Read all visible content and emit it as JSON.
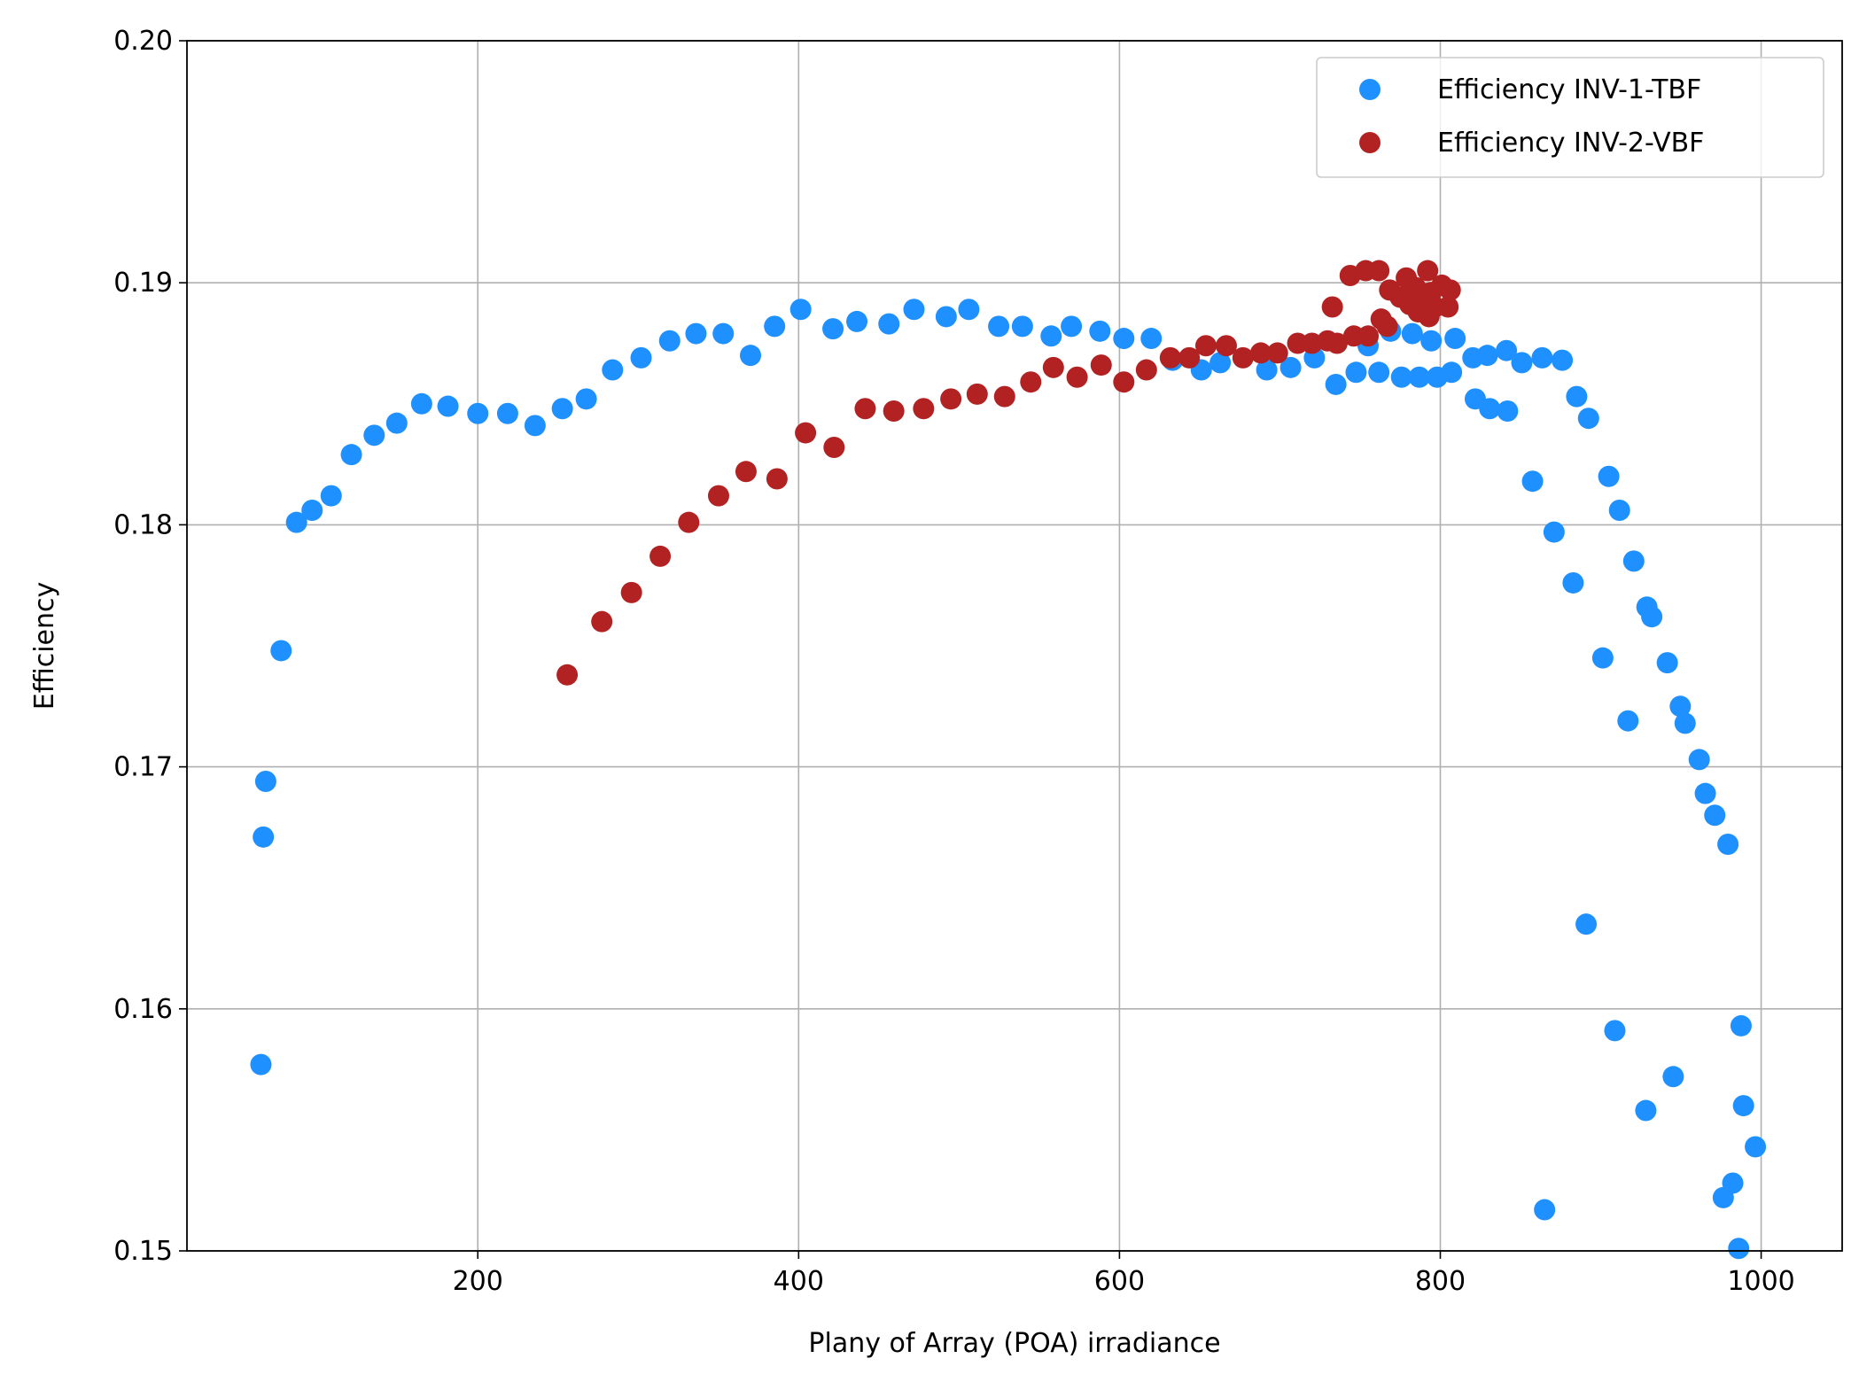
{
  "chart_data": {
    "type": "scatter",
    "xlabel": "Plany of Array (POA) irradiance",
    "ylabel": "Efficiency",
    "xlim": [
      18.7,
      1050.5
    ],
    "ylim": [
      0.15,
      0.2
    ],
    "xticks": [
      200,
      400,
      600,
      800,
      1000
    ],
    "yticks": [
      0.15,
      0.16,
      0.17,
      0.18,
      0.19,
      {
        "value": 0.2,
        "label": "0.20"
      }
    ],
    "grid": true,
    "legend": "upper right",
    "series": [
      {
        "name": "Efficiency INV-1-TBF",
        "color": "#1e90ff",
        "x": [
          64.8,
          66.3,
          67.8,
          77.4,
          87,
          96.7,
          108.6,
          121.2,
          135.4,
          149.5,
          165,
          181.4,
          200,
          218.6,
          235.7,
          252.7,
          267.6,
          284,
          301.8,
          319.6,
          336,
          353,
          370,
          385,
          401.3,
          421.4,
          436.3,
          456.3,
          471.9,
          492,
          506.1,
          524.7,
          539.5,
          557.4,
          570,
          587.8,
          602.7,
          619.8,
          633.1,
          651,
          662.8,
          691.8,
          706.7,
          721.5,
          734.9,
          747.5,
          755,
          761.7,
          769,
          775.8,
          782.5,
          786.9,
          794.3,
          798,
          807,
          809.2,
          820.3,
          821.8,
          829.3,
          830.8,
          841.2,
          841.9,
          850.8,
          857.5,
          863.5,
          865,
          870.9,
          876,
          882.8,
          885,
          890.9,
          892.4,
          901.3,
          905,
          908.8,
          911.7,
          917,
          920.6,
          928.1,
          928.8,
          931.8,
          941.5,
          945.2,
          949.6,
          952.6,
          961.4,
          965.2,
          971.1,
          976.4,
          979.3,
          982.3,
          986,
          987.5,
          989,
          996.4
        ],
        "values": [
          0.1577,
          0.1671,
          0.1694,
          0.1748,
          0.1801,
          0.1806,
          0.1812,
          0.1829,
          0.1837,
          0.1842,
          0.185,
          0.1849,
          0.1846,
          0.1846,
          0.1841,
          0.1848,
          0.1852,
          0.1864,
          0.1869,
          0.1876,
          0.1879,
          0.1879,
          0.187,
          0.1882,
          0.1889,
          0.1881,
          0.1884,
          0.1883,
          0.1889,
          0.1886,
          0.1889,
          0.1882,
          0.1882,
          0.1878,
          0.1882,
          0.188,
          0.1877,
          0.1877,
          0.1868,
          0.1864,
          0.1867,
          0.1864,
          0.1865,
          0.1869,
          0.1858,
          0.1863,
          0.1874,
          0.1863,
          0.188,
          0.1861,
          0.1879,
          0.1861,
          0.1876,
          0.1861,
          0.1863,
          0.1877,
          0.1869,
          0.1852,
          0.187,
          0.1848,
          0.1872,
          0.1847,
          0.1867,
          0.1818,
          0.1869,
          0.1517,
          0.1797,
          0.1868,
          0.1776,
          0.1853,
          0.1635,
          0.1844,
          0.1745,
          0.182,
          0.1591,
          0.1806,
          0.1719,
          0.1785,
          0.1558,
          0.1766,
          0.1762,
          0.1743,
          0.1572,
          0.1725,
          0.1718,
          0.1703,
          0.1689,
          0.168,
          0.1522,
          0.1668,
          0.1528,
          0.1501,
          0.1593,
          0.156,
          0.1543
        ]
      },
      {
        "name": "Efficiency INV-2-VBF",
        "color": "#b22222",
        "x": [
          255.7,
          277.3,
          295.8,
          313.7,
          331.5,
          350.1,
          367.2,
          386.5,
          404.3,
          422.1,
          441.5,
          459.3,
          477.9,
          494.9,
          511.3,
          528.4,
          544.7,
          558.8,
          573.6,
          588.6,
          602.7,
          616.8,
          631.7,
          643.5,
          653.9,
          666.6,
          677,
          688.1,
          698.5,
          711.1,
          720,
          729.7,
          732.7,
          735.6,
          743.8,
          746.1,
          753.5,
          755,
          761.7,
          763.1,
          766.9,
          768.4,
          775,
          778.8,
          781,
          784.7,
          786.2,
          789.2,
          792.1,
          792.9,
          794.3,
          796.6,
          801,
          804.8,
          806.2
        ],
        "values": [
          0.1738,
          0.176,
          0.1772,
          0.1787,
          0.1801,
          0.1812,
          0.1822,
          0.1819,
          0.1838,
          0.1832,
          0.1848,
          0.1847,
          0.1848,
          0.1852,
          0.1854,
          0.1853,
          0.1859,
          0.1865,
          0.1861,
          0.1866,
          0.1859,
          0.1864,
          0.1869,
          0.1869,
          0.1874,
          0.1874,
          0.1869,
          0.1871,
          0.1871,
          0.1875,
          0.1875,
          0.1876,
          0.189,
          0.1875,
          0.1903,
          0.1878,
          0.1905,
          0.1878,
          0.1905,
          0.1885,
          0.1882,
          0.1897,
          0.1894,
          0.1902,
          0.1891,
          0.1898,
          0.1888,
          0.1894,
          0.1905,
          0.1886,
          0.1896,
          0.189,
          0.1899,
          0.189,
          0.1897
        ]
      }
    ]
  }
}
